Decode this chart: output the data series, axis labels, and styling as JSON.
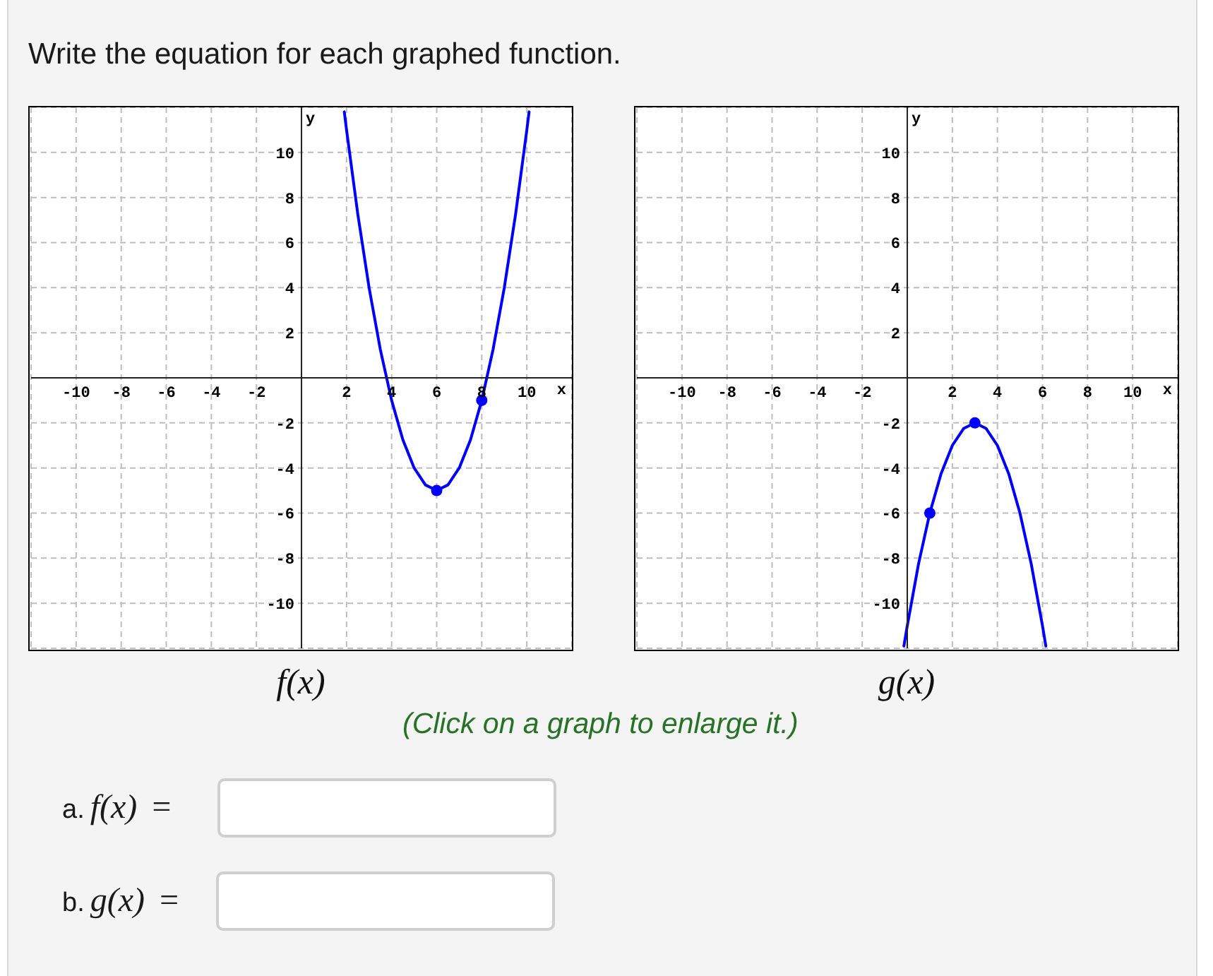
{
  "chart_data": [
    {
      "type": "other",
      "title": "Write the equation for each graphed function."
    },
    {
      "type": "line",
      "title": "f(x)",
      "xlabel": "x",
      "ylabel": "y",
      "xlim": [
        -12,
        12
      ],
      "ylim": [
        -12,
        12
      ],
      "xticks": [
        -10,
        -8,
        -6,
        -4,
        -2,
        2,
        4,
        6,
        8,
        10
      ],
      "yticks": [
        -10,
        -8,
        -6,
        -4,
        -2,
        2,
        4,
        6,
        8,
        10
      ],
      "grid": true,
      "series": [
        {
          "type": "line",
          "color": "#0000ff",
          "x": [
            1.9,
            2,
            2.5,
            3,
            3.5,
            4,
            4.5,
            5,
            5.5,
            6,
            6.5,
            7,
            7.5,
            8,
            8.5,
            9,
            9.5,
            10,
            10.1
          ],
          "values": [
            11.8,
            11,
            7.25,
            4,
            1.25,
            -1,
            -2.75,
            -4,
            -4.75,
            -5,
            -4.75,
            -4,
            -2.75,
            -1,
            1.25,
            4,
            7.25,
            11,
            11.8
          ]
        },
        {
          "type": "scatter",
          "color": "#0000ff",
          "marker": "circle",
          "x": [
            6,
            8
          ],
          "values": [
            -5,
            -1
          ]
        }
      ]
    },
    {
      "type": "line",
      "title": "g(x)",
      "xlabel": "x",
      "ylabel": "y",
      "xlim": [
        -12,
        12
      ],
      "ylim": [
        -12,
        12
      ],
      "xticks": [
        -10,
        -8,
        -6,
        -4,
        -2,
        2,
        4,
        6,
        8,
        10
      ],
      "yticks": [
        -10,
        -8,
        -6,
        -4,
        -2,
        2,
        4,
        6,
        8,
        10
      ],
      "grid": true,
      "series": [
        {
          "type": "line",
          "color": "#0000ff",
          "x": [
            -0.15,
            0,
            0.5,
            1,
            1.5,
            2,
            2.5,
            3,
            3.5,
            4,
            4.5,
            5,
            5.5,
            6,
            6.15
          ],
          "values": [
            -11.9,
            -11,
            -8.25,
            -6,
            -4.25,
            -3,
            -2.25,
            -2,
            -2.25,
            -3,
            -4.25,
            -6,
            -8.25,
            -11,
            -11.9
          ]
        },
        {
          "type": "scatter",
          "color": "#0000ff",
          "marker": "circle",
          "x": [
            1,
            3
          ],
          "values": [
            -6,
            -2
          ]
        }
      ]
    },
    {
      "type": "other",
      "annotations": [
        "(Click on a graph to enlarge it.)",
        "a. f(x) =",
        "b. g(x) ="
      ]
    }
  ]
}
